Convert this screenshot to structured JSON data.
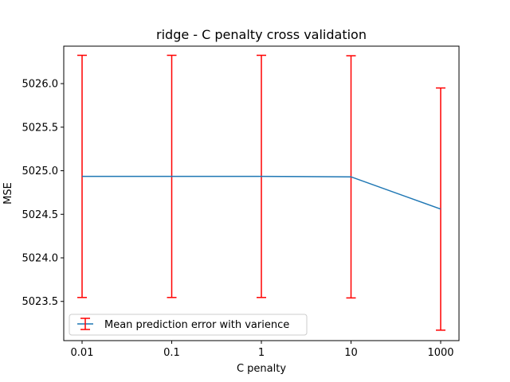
{
  "chart_data": {
    "type": "line",
    "title": "ridge - C penalty cross validation",
    "xlabel": "C penalty",
    "ylabel": "MSE",
    "categories": [
      "0.01",
      "0.1",
      "1",
      "10",
      "1000"
    ],
    "ylim": [
      5023.05,
      5026.43
    ],
    "yticks": [
      5023.5,
      5024.0,
      5024.5,
      5025.0,
      5025.5,
      5026.0
    ],
    "ytick_labels": [
      "5023.5",
      "5024.0",
      "5024.5",
      "5025.0",
      "5025.5",
      "5026.0"
    ],
    "series": [
      {
        "name": "Mean prediction error with varience",
        "values": [
          5024.935,
          5024.935,
          5024.935,
          5024.93,
          5024.56
        ],
        "err": [
          1.39,
          1.39,
          1.39,
          1.39,
          1.39
        ]
      }
    ],
    "legend_position": "lower-left",
    "grid": false,
    "colors": {
      "line": "#1f77b4",
      "errorbar": "#ff0000"
    }
  }
}
